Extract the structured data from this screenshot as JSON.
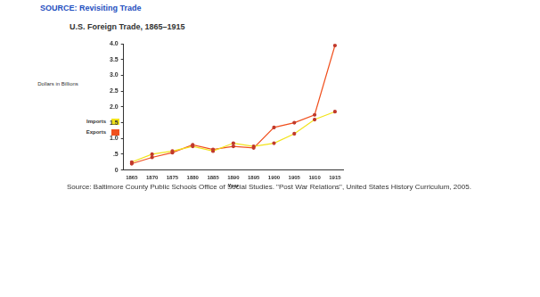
{
  "header": "SOURCE: Revisiting Trade",
  "source": "Source: Baltimore County Public Schools Office of Social Studies. \"Post War Relations\", United States History Curriculum, 2005.",
  "chart_data": {
    "type": "line",
    "title": "U.S. Foreign Trade, 1865–1915",
    "x_label": "Year",
    "y_label": "Dollars in Billions",
    "categories": [
      "1865",
      "1870",
      "1875",
      "1880",
      "1885",
      "1890",
      "1895",
      "1900",
      "1905",
      "1910",
      "1915"
    ],
    "series": [
      {
        "name": "Imports",
        "color": "#f2e31b",
        "values": [
          0.25,
          0.5,
          0.6,
          0.75,
          0.6,
          0.85,
          0.75,
          0.85,
          1.15,
          1.6,
          1.85
        ]
      },
      {
        "name": "Exports",
        "color": "#f0501e",
        "values": [
          0.2,
          0.4,
          0.55,
          0.8,
          0.65,
          0.75,
          0.7,
          1.35,
          1.5,
          1.75,
          3.95
        ]
      }
    ],
    "ylim": [
      0,
      4
    ],
    "yticks": [
      0,
      {
        "value": 0.5,
        "label": ".5"
      },
      {
        "value": 1,
        "label": "1.0"
      },
      1.5,
      {
        "value": 2,
        "label": "2.0"
      },
      2.5,
      {
        "value": 3,
        "label": "3.0"
      },
      3.5,
      {
        "value": 4,
        "label": "4.0"
      }
    ],
    "grid": false,
    "legend": "left",
    "marker": "circle"
  }
}
